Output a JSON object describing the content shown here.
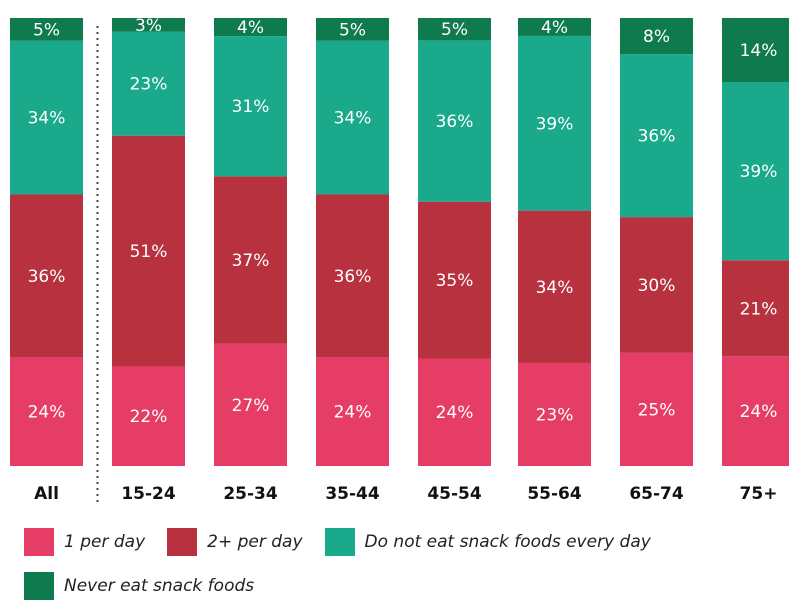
{
  "chart_data": {
    "type": "bar",
    "stacked": true,
    "normalized": true,
    "categories": [
      "All",
      "15-24",
      "25-34",
      "35-44",
      "45-54",
      "55-64",
      "65-74",
      "75+"
    ],
    "series": [
      {
        "name": "1 per day",
        "color": "#e53d66",
        "values": [
          24,
          22,
          27,
          24,
          24,
          23,
          25,
          24
        ]
      },
      {
        "name": "2+ per day",
        "color": "#b8313f",
        "values": [
          36,
          51,
          37,
          36,
          35,
          34,
          30,
          21
        ]
      },
      {
        "name": "Do not eat snack foods every day",
        "color": "#1aa98a",
        "values": [
          34,
          23,
          31,
          34,
          36,
          39,
          36,
          39
        ]
      },
      {
        "name": "Never eat snack foods",
        "color": "#0e7a4d",
        "values": [
          5,
          3,
          4,
          5,
          5,
          4,
          8,
          14
        ]
      }
    ],
    "value_suffix": "%",
    "separator_after_category": "All",
    "legend_position": "bottom",
    "grid": false
  }
}
